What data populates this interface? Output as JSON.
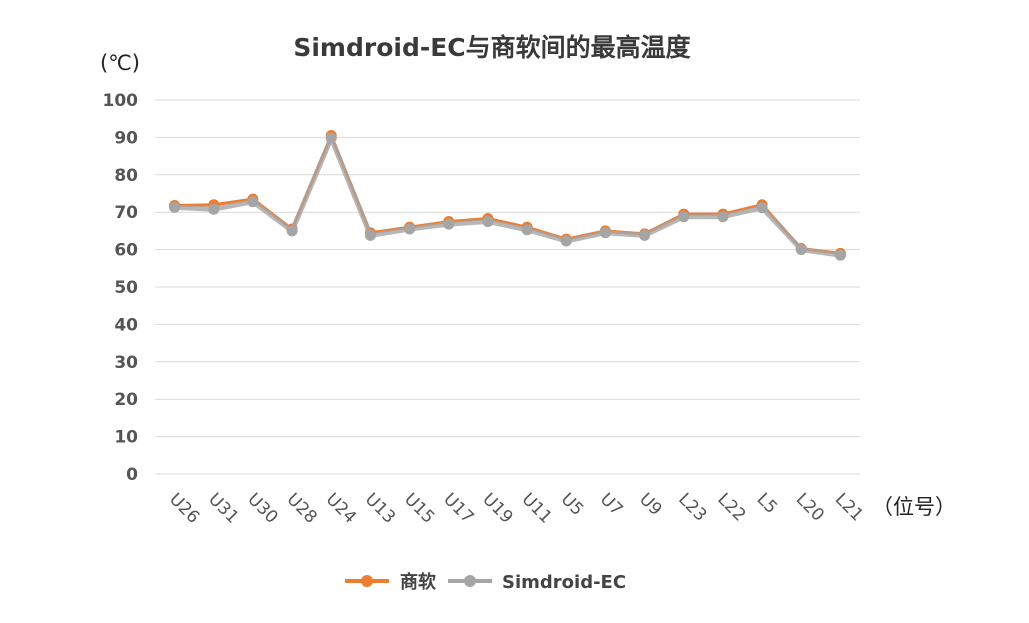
{
  "chart_data": {
    "type": "line",
    "title": "Simdroid-EC与商软间的最高温度",
    "y_unit": "(℃)",
    "x_unit": "（位号）",
    "categories": [
      "U26",
      "U31",
      "U30",
      "U28",
      "U24",
      "U13",
      "U15",
      "U17",
      "U19",
      "U11",
      "U5",
      "U7",
      "U9",
      "L23",
      "L22",
      "L5",
      "L20",
      "L21"
    ],
    "ylim": [
      0,
      100
    ],
    "yticks": [
      0,
      10,
      20,
      30,
      40,
      50,
      60,
      70,
      80,
      90,
      100
    ],
    "grid": true,
    "legend_position": "bottom",
    "series": [
      {
        "name": "商软",
        "color": "#ED7D31",
        "values": [
          71.8,
          72.0,
          73.5,
          65.5,
          90.5,
          64.5,
          66.0,
          67.5,
          68.3,
          66.0,
          62.8,
          65.0,
          64.2,
          69.5,
          69.5,
          72.0,
          60.3,
          59.0
        ]
      },
      {
        "name": "Simdroid-EC",
        "color": "#A5A5A5",
        "values": [
          71.3,
          70.8,
          72.8,
          65.0,
          89.8,
          63.8,
          65.5,
          66.8,
          67.5,
          65.3,
          62.3,
          64.5,
          63.8,
          68.8,
          68.8,
          71.2,
          60.0,
          58.5
        ]
      }
    ]
  }
}
